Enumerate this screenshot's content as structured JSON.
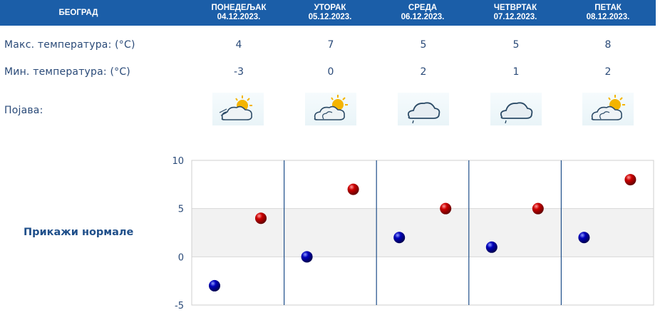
{
  "header": {
    "city": "БЕОГРАД",
    "days": [
      {
        "name": "ПОНЕДЕЉАК",
        "date": "04.12.2023."
      },
      {
        "name": "УТОРАК",
        "date": "05.12.2023."
      },
      {
        "name": "СРЕДА",
        "date": "06.12.2023."
      },
      {
        "name": "ЧЕТВРТАК",
        "date": "07.12.2023."
      },
      {
        "name": "ПЕТАК",
        "date": "08.12.2023."
      }
    ]
  },
  "rows": {
    "max_label": "Макс. температура: (°C)",
    "min_label": "Мин. температура: (°C)",
    "phenomenon_label": "Појава:",
    "max_values": [
      "4",
      "7",
      "5",
      "5",
      "8"
    ],
    "min_values": [
      "-3",
      "0",
      "2",
      "1",
      "2"
    ],
    "phenomenon_icons": [
      "partly-cloudy-sun-icon",
      "partly-cloudy-sun-icon",
      "cloud-drizzle-icon",
      "cloud-drizzle-icon",
      "partly-cloudy-sun-icon"
    ]
  },
  "normals_link": "Прикажи нормале",
  "colors": {
    "header_bg": "#1b5ea8",
    "text": "#2a4a78",
    "max_point": "#cc0000",
    "min_point": "#0000bb",
    "band": "#f2f2f2"
  },
  "chart_data": {
    "type": "scatter",
    "categories": [
      "04.12.2023.",
      "05.12.2023.",
      "06.12.2023.",
      "07.12.2023.",
      "08.12.2023."
    ],
    "series": [
      {
        "values": [
          -3,
          0,
          2,
          1,
          2
        ]
      },
      {
        "values": [
          4,
          7,
          5,
          5,
          8
        ]
      }
    ],
    "yticks": [
      "10",
      "5",
      "0",
      "-5"
    ],
    "ylim": [
      -5,
      10
    ],
    "grid": true
  }
}
